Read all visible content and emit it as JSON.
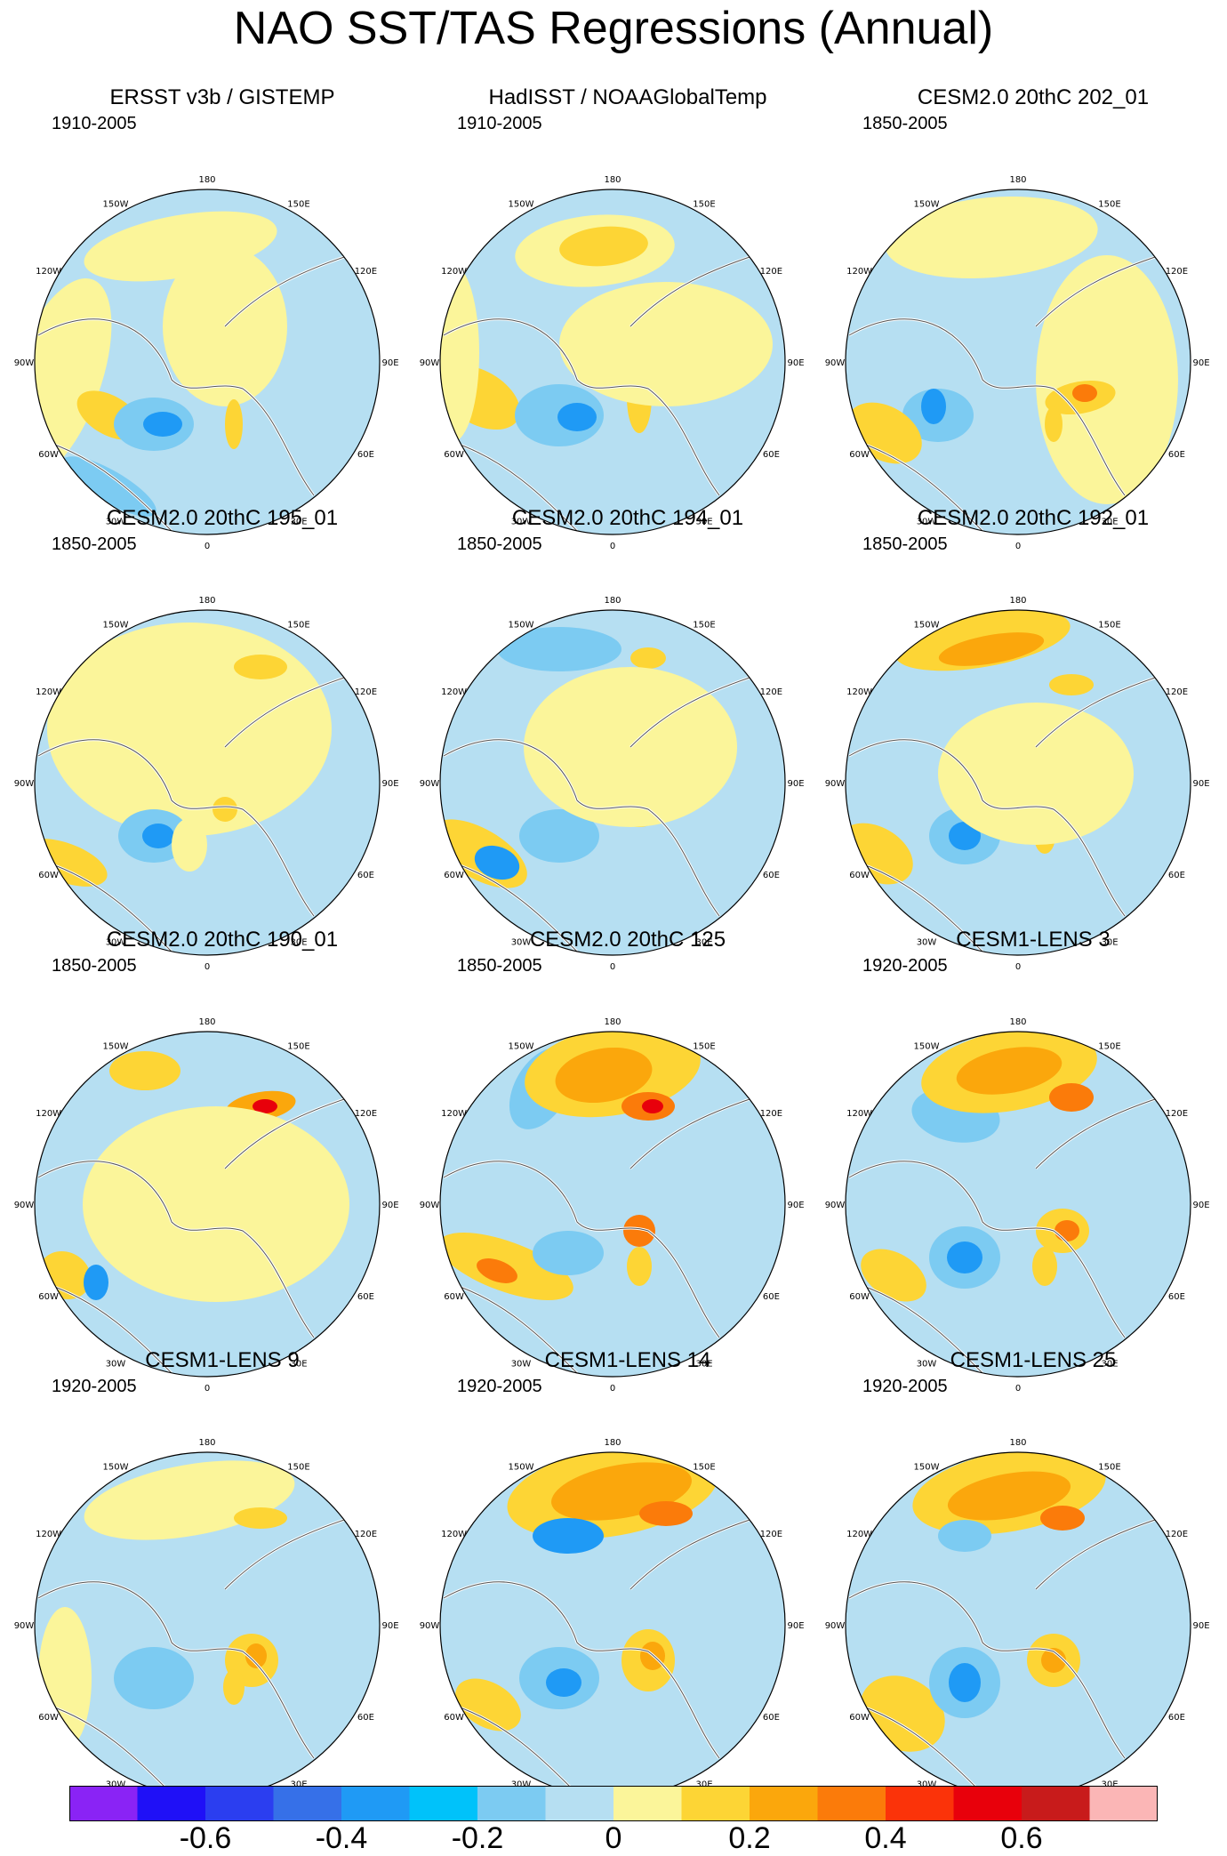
{
  "title": "NAO SST/TAS Regressions (Annual)",
  "lon_labels": [
    "180",
    "150E",
    "120E",
    "90E",
    "60E",
    "30E",
    "0",
    "30W",
    "60W",
    "90W",
    "120W",
    "150W"
  ],
  "panels": [
    {
      "title": "ERSST v3b / GISTEMP",
      "period": "1910-2005"
    },
    {
      "title": "HadISST / NOAAGlobalTemp",
      "period": "1910-2005"
    },
    {
      "title": "CESM2.0 20thC 202_01",
      "period": "1850-2005"
    },
    {
      "title": "CESM2.0 20thC 195_01",
      "period": "1850-2005"
    },
    {
      "title": "CESM2.0 20thC 194_01",
      "period": "1850-2005"
    },
    {
      "title": "CESM2.0 20thC 192_01",
      "period": "1850-2005"
    },
    {
      "title": "CESM2.0 20thC 190_01",
      "period": "1850-2005"
    },
    {
      "title": "CESM2.0 20thC 125",
      "period": "1850-2005"
    },
    {
      "title": "CESM1-LENS 3",
      "period": "1920-2005"
    },
    {
      "title": "CESM1-LENS 9",
      "period": "1920-2005"
    },
    {
      "title": "CESM1-LENS 14",
      "period": "1920-2005"
    },
    {
      "title": "CESM1-LENS 25",
      "period": "1920-2005"
    }
  ],
  "colorbar": {
    "colors": [
      "#8a23f5",
      "#1f10f7",
      "#2b3ef0",
      "#3670e8",
      "#1f9af5",
      "#00c2fa",
      "#7ccbf2",
      "#b6dff2",
      "#fbf59a",
      "#fdd535",
      "#fba70c",
      "#fb7b0a",
      "#fb3309",
      "#e8000b",
      "#c81b1b",
      "#fbb6b6"
    ],
    "tick_labels": [
      "-0.6",
      "-0.4",
      "-0.2",
      "0",
      "0.2",
      "0.4",
      "0.6"
    ]
  },
  "palette": {
    "ocean_neg": "#b6dff2",
    "weak_pos": "#fbf59a",
    "mod_pos": "#fdd535",
    "strong_pos": "#fba70c",
    "very_pos": "#fb7b0a",
    "max_pos": "#e8000b",
    "mod_neg": "#7ccbf2",
    "strong_neg": "#1f9af5",
    "max_neg": "#2b3ef0",
    "land_line": "#555555"
  }
}
